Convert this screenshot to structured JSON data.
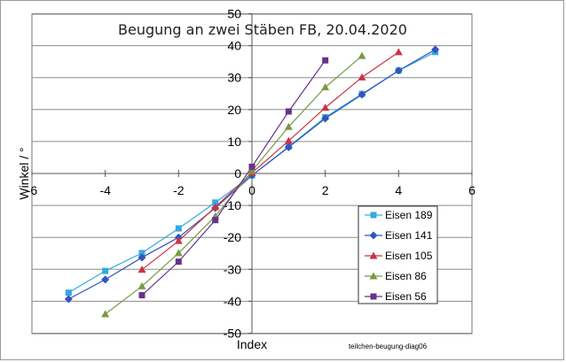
{
  "chart_data": {
    "type": "scatter",
    "title": "Beugung an zwei Stäben FB, 20.04.2020",
    "xlabel": "Index",
    "ylabel": "Winkel / °",
    "source_note": "teilchen-beugung-diag06",
    "xlim": [
      -6,
      6
    ],
    "ylim": [
      -50,
      50
    ],
    "x_ticks": [
      -6,
      -4,
      -2,
      0,
      2,
      4,
      6
    ],
    "y_ticks": [
      -50,
      -40,
      -30,
      -20,
      -10,
      0,
      10,
      20,
      30,
      40,
      50
    ],
    "x_tick_labels": [
      "-6",
      "-4",
      "-2",
      "0",
      "2",
      "4",
      "6"
    ],
    "y_tick_labels": [
      "-50",
      "-40",
      "-30",
      "-20",
      "-10",
      "0",
      "10",
      "20",
      "30",
      "40",
      "50"
    ],
    "grid": "horizontal",
    "legend_position": "right",
    "series": [
      {
        "name": "Eisen 189",
        "color": "#33aadd",
        "marker": "square",
        "x": [
          -5,
          -4,
          -3,
          -2,
          -1,
          0,
          1,
          2,
          3,
          4,
          5
        ],
        "y": [
          -37.3,
          -30.5,
          -24.9,
          -17.2,
          -9.1,
          -0.6,
          8.4,
          17.6,
          24.9,
          32.2,
          38
        ]
      },
      {
        "name": "Eisen 141",
        "color": "#3355bb",
        "marker": "diamond",
        "x": [
          -5,
          -4,
          -3,
          -2,
          -1,
          0,
          1,
          2,
          3,
          4,
          5
        ],
        "y": [
          -39.3,
          -33.2,
          -26.3,
          -20,
          -10.8,
          -0.6,
          8.2,
          17.2,
          24.7,
          32.2,
          38.8
        ]
      },
      {
        "name": "Eisen 105",
        "color": "#cc3344",
        "marker": "triangle",
        "x": [
          -3,
          -2,
          -1,
          0,
          1,
          2,
          3,
          4
        ],
        "y": [
          -30.1,
          -21.1,
          -10.5,
          0.2,
          10.2,
          20.6,
          30.1,
          38
        ]
      },
      {
        "name": "Eisen 86",
        "color": "#779944",
        "marker": "triangle",
        "x": [
          -4,
          -3,
          -2,
          -1,
          0,
          1,
          2,
          3
        ],
        "y": [
          -44,
          -35.3,
          -24.9,
          -13.4,
          0.8,
          14.6,
          27,
          36.8
        ]
      },
      {
        "name": "Eisen 56",
        "color": "#663388",
        "marker": "square",
        "x": [
          -3,
          -2,
          -1,
          0,
          1,
          2
        ],
        "y": [
          -38.1,
          -27.6,
          -14.6,
          2.1,
          19.4,
          35.4
        ]
      }
    ]
  }
}
